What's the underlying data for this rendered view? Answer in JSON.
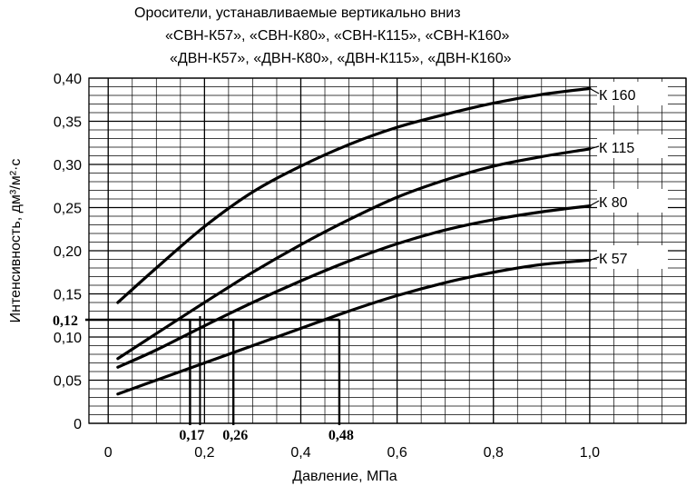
{
  "chart_data": {
    "type": "line",
    "title_lines": [
      "Оросители, устанавливаемые вертикально вниз",
      "«СВН-К57», «СВН-К80», «СВН-К115», «СВН-К160»",
      "«ДВН-К57», «ДВН-К80», «ДВН-К115», «ДВН-К160»"
    ],
    "xlabel": "Давление, МПа",
    "ylabel": "Интенсивность, дм³/м²·с",
    "xlim": [
      -0.04,
      1.2
    ],
    "ylim": [
      0,
      0.4
    ],
    "x_ticks": [
      "0",
      "0,2",
      "0,4",
      "0,6",
      "0,8",
      "1,0"
    ],
    "y_ticks": [
      "0",
      "0,05",
      "0,10",
      "0,15",
      "0,20",
      "0,25",
      "0,30",
      "0,35",
      "0,40"
    ],
    "grid": true,
    "series": [
      {
        "name": "К 160",
        "points": [
          [
            0.02,
            0.14
          ],
          [
            0.1,
            0.18
          ],
          [
            0.2,
            0.228
          ],
          [
            0.3,
            0.268
          ],
          [
            0.4,
            0.298
          ],
          [
            0.5,
            0.323
          ],
          [
            0.6,
            0.343
          ],
          [
            0.7,
            0.358
          ],
          [
            0.8,
            0.371
          ],
          [
            0.9,
            0.381
          ],
          [
            1.0,
            0.388
          ]
        ]
      },
      {
        "name": "К 115",
        "points": [
          [
            0.02,
            0.075
          ],
          [
            0.1,
            0.104
          ],
          [
            0.2,
            0.14
          ],
          [
            0.3,
            0.175
          ],
          [
            0.4,
            0.207
          ],
          [
            0.5,
            0.236
          ],
          [
            0.6,
            0.262
          ],
          [
            0.7,
            0.282
          ],
          [
            0.8,
            0.298
          ],
          [
            0.9,
            0.309
          ],
          [
            1.0,
            0.318
          ]
        ]
      },
      {
        "name": "К 80",
        "points": [
          [
            0.02,
            0.065
          ],
          [
            0.1,
            0.085
          ],
          [
            0.2,
            0.113
          ],
          [
            0.3,
            0.14
          ],
          [
            0.4,
            0.165
          ],
          [
            0.5,
            0.188
          ],
          [
            0.6,
            0.208
          ],
          [
            0.7,
            0.224
          ],
          [
            0.8,
            0.236
          ],
          [
            0.9,
            0.245
          ],
          [
            1.0,
            0.252
          ]
        ]
      },
      {
        "name": "К 57",
        "points": [
          [
            0.02,
            0.034
          ],
          [
            0.1,
            0.05
          ],
          [
            0.2,
            0.07
          ],
          [
            0.3,
            0.09
          ],
          [
            0.4,
            0.11
          ],
          [
            0.5,
            0.13
          ],
          [
            0.6,
            0.148
          ],
          [
            0.7,
            0.163
          ],
          [
            0.8,
            0.175
          ],
          [
            0.9,
            0.184
          ],
          [
            1.0,
            0.189
          ]
        ]
      }
    ],
    "annotations": {
      "intensity_label": "0,12",
      "intensity_value": 0.12,
      "pressures": [
        {
          "value": 0.17,
          "label": "0,17"
        },
        {
          "value": 0.26,
          "label": "0,26"
        },
        {
          "value": 0.48,
          "label": "0,48"
        }
      ]
    }
  }
}
